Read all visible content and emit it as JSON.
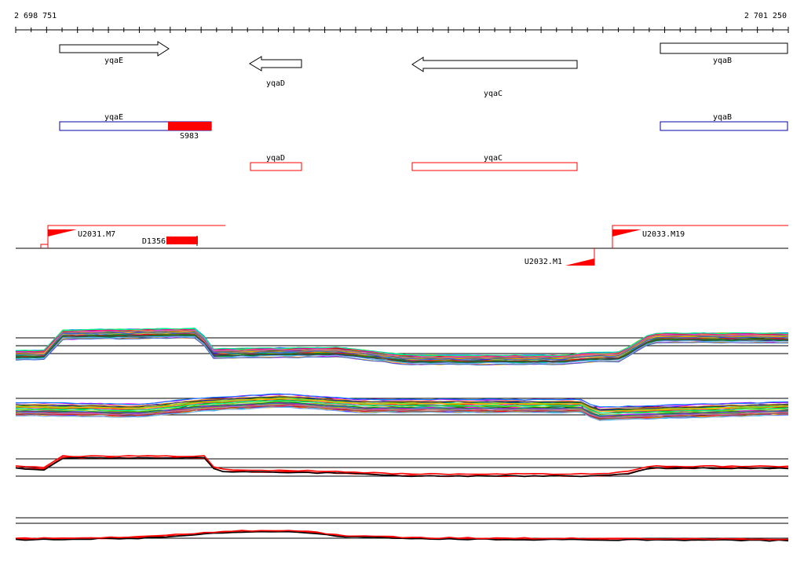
{
  "coordinates": {
    "start": "2 698 751",
    "end": "2 701 250"
  },
  "genes_strand": [
    {
      "name": "yqaE",
      "direction": "forward"
    },
    {
      "name": "yqaD",
      "direction": "reverse"
    },
    {
      "name": "yqaC",
      "direction": "reverse"
    },
    {
      "name": "yqaB",
      "direction": "none"
    }
  ],
  "annotations": [
    {
      "name": "yqaE",
      "color": "#0000aa"
    },
    {
      "name": "S983",
      "color": "#ff0000"
    },
    {
      "name": "yqaB",
      "color": "#0000aa"
    },
    {
      "name": "yqaD",
      "color": "#ff0000"
    },
    {
      "name": "yqaC",
      "color": "#ff0000"
    }
  ],
  "features": [
    {
      "name": "U2031.M7"
    },
    {
      "name": "D1356"
    },
    {
      "name": "U2033.M19"
    },
    {
      "name": "U2032.M1"
    }
  ],
  "colors": {
    "accent": "#ff0000",
    "blue": "#0000aa",
    "line": "#000000"
  }
}
